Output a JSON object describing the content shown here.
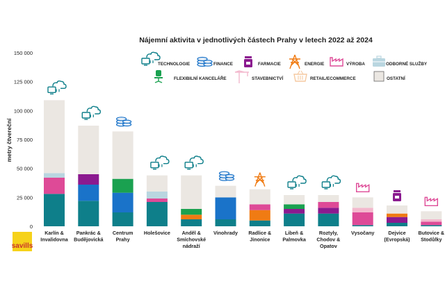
{
  "brand": "savills",
  "chart_data": {
    "type": "bar",
    "stacked": true,
    "title": "Nájemní aktivita v jednotlivých částech Prahy v letech 2022 až 2024",
    "xlabel": "",
    "ylabel": "metry čtvereční",
    "ylim": [
      0,
      150000
    ],
    "yticks": [
      0,
      25000,
      50000,
      75000,
      100000,
      125000,
      150000
    ],
    "ytick_labels": [
      "0",
      "25 000",
      "50 000",
      "75 000",
      "100 000",
      "125 000",
      "150 000"
    ],
    "grid": false,
    "legend_position": "top",
    "categories": [
      [
        "Karlín &",
        "Invalidovna"
      ],
      [
        "Pankrác &",
        "Budějovická"
      ],
      [
        "Centrum",
        "Prahy"
      ],
      [
        "Holešovice"
      ],
      [
        "Anděl &",
        "Smíchovské",
        "nádraží"
      ],
      [
        "Vinohrady"
      ],
      [
        "Radlice &",
        "Jinonice"
      ],
      [
        "Libeň &",
        "Palmovka"
      ],
      [
        "Roztyly,",
        "Chodov &",
        "Opatov"
      ],
      [
        "Vysočany"
      ],
      [
        "Dejvice",
        "(Evropská)"
      ],
      [
        "Butovice &",
        "Stodůlky"
      ]
    ],
    "category_icons": [
      "technologie",
      "technologie",
      "finance",
      "technologie",
      "technologie",
      "finance",
      "energie",
      "technologie",
      "technologie",
      "vyroba",
      "farmacie",
      "vyroba"
    ],
    "series": [
      {
        "name": "TECHNOLOGIE",
        "key": "technologie",
        "color": "#0e7f8a",
        "values": [
          28000,
          22000,
          12000,
          21000,
          6000,
          6000,
          5000,
          11000,
          11000,
          1000,
          3000,
          1000
        ]
      },
      {
        "name": "FINANCE",
        "key": "finance",
        "color": "#1a73c9",
        "values": [
          0,
          14000,
          17000,
          0,
          0,
          19000,
          0,
          0,
          0,
          0,
          0,
          0
        ]
      },
      {
        "name": "FARMACIE",
        "key": "farmacie",
        "color": "#8b1a8f",
        "values": [
          0,
          9000,
          0,
          0,
          0,
          0,
          0,
          4000,
          5000,
          0,
          5000,
          0
        ]
      },
      {
        "name": "ENERGIE",
        "key": "energie",
        "color": "#f07b13",
        "values": [
          0,
          0,
          0,
          0,
          4000,
          0,
          9000,
          0,
          0,
          0,
          3000,
          0
        ]
      },
      {
        "name": "VÝROBA",
        "key": "vyroba",
        "color": "#de4a97",
        "values": [
          14000,
          0,
          0,
          3000,
          0,
          0,
          5000,
          0,
          5000,
          11000,
          0,
          3000
        ]
      },
      {
        "name": "ODBORNÉ SLUŽBY",
        "key": "odborne",
        "color": "#b9d6e0",
        "values": [
          4000,
          0,
          0,
          6000,
          0,
          0,
          0,
          0,
          0,
          0,
          0,
          0
        ]
      },
      {
        "name": "FLEXIBILNÍ KANCELÁŘE",
        "key": "flex",
        "color": "#1aa150",
        "values": [
          0,
          0,
          12000,
          0,
          5000,
          0,
          0,
          4000,
          0,
          0,
          0,
          0
        ]
      },
      {
        "name": "STAVEBNICTVÍ",
        "key": "stavebnictvi",
        "color": "#f3b8cd",
        "values": [
          0,
          0,
          0,
          0,
          0,
          0,
          0,
          0,
          0,
          4000,
          0,
          2000
        ]
      },
      {
        "name": "RETAIL/ECOMMERCE",
        "key": "retail",
        "color": "#f5c9a0",
        "values": [
          0,
          0,
          0,
          0,
          0,
          0,
          0,
          0,
          0,
          0,
          0,
          0
        ]
      },
      {
        "name": "OSTATNÍ",
        "key": "ostatni",
        "color": "#ebe7e2",
        "values": [
          63000,
          42000,
          41000,
          14000,
          29000,
          10000,
          13000,
          8000,
          6000,
          9000,
          7000,
          7000
        ]
      }
    ]
  }
}
